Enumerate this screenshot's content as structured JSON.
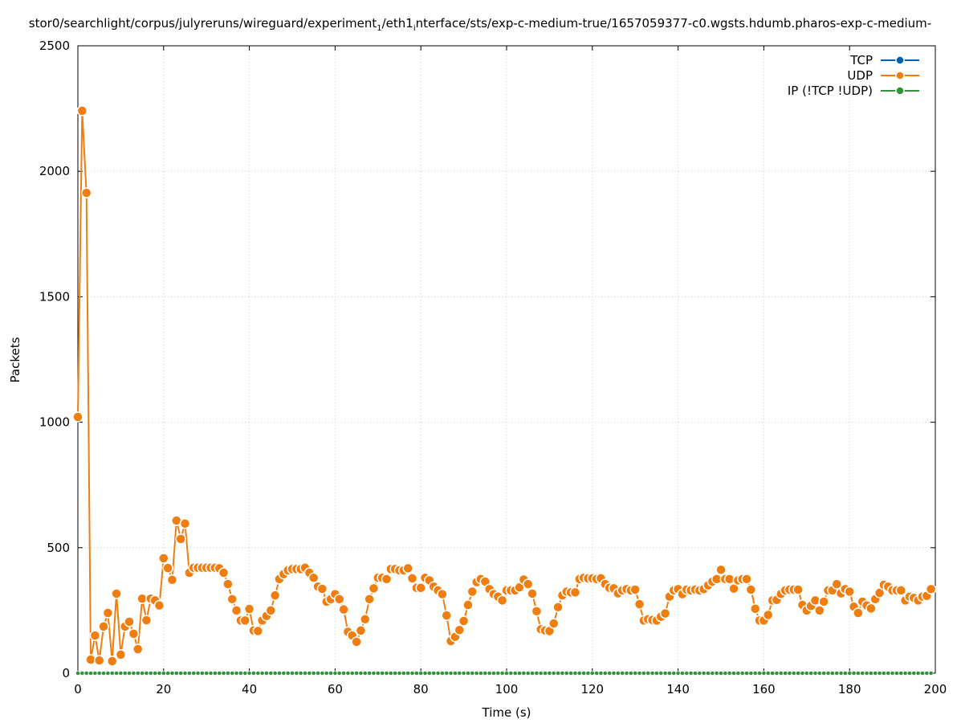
{
  "chart_data": {
    "type": "line",
    "title": [
      "stor0/searchlight/corpus/julyreruns/wireguard/experiment",
      "1",
      "/eth1",
      "i",
      "nterface/sts/exp-c-medium-true/1657059377-c0.wgsts.hdumb.pharos-exp-c-medium-"
    ],
    "x_label": "Time (s)",
    "y_label": "Packets",
    "x": [
      0,
      1,
      2,
      3,
      4,
      5,
      6,
      7,
      8,
      9,
      10,
      11,
      12,
      13,
      14,
      15,
      16,
      17,
      18,
      19,
      20,
      21,
      22,
      23,
      24,
      25,
      26,
      27,
      28,
      29,
      30,
      31,
      32,
      33,
      34,
      35,
      36,
      37,
      38,
      39,
      40,
      41,
      42,
      43,
      44,
      45,
      46,
      47,
      48,
      49,
      50,
      51,
      52,
      53,
      54,
      55,
      56,
      57,
      58,
      59,
      60,
      61,
      62,
      63,
      64,
      65,
      66,
      67,
      68,
      69,
      70,
      71,
      72,
      73,
      74,
      75,
      76,
      77,
      78,
      79,
      80,
      81,
      82,
      83,
      84,
      85,
      86,
      87,
      88,
      89,
      90,
      91,
      92,
      93,
      94,
      95,
      96,
      97,
      98,
      99,
      100,
      101,
      102,
      103,
      104,
      105,
      106,
      107,
      108,
      109,
      110,
      111,
      112,
      113,
      114,
      115,
      116,
      117,
      118,
      119,
      120,
      121,
      122,
      123,
      124,
      125,
      126,
      127,
      128,
      129,
      130,
      131,
      132,
      133,
      134,
      135,
      136,
      137,
      138,
      139,
      140,
      141,
      142,
      143,
      144,
      145,
      146,
      147,
      148,
      149,
      150,
      151,
      152,
      153,
      154,
      155,
      156,
      157,
      158,
      159,
      160,
      161,
      162,
      163,
      164,
      165,
      166,
      167,
      168,
      169,
      170,
      171,
      172,
      173,
      174,
      175,
      176,
      177,
      178,
      179,
      180,
      181,
      182,
      183,
      184,
      185,
      186,
      187,
      188,
      189,
      190,
      191,
      192,
      193,
      194,
      195,
      196,
      197,
      198,
      199
    ],
    "series": [
      {
        "name": "TCP",
        "color": "#0060ad",
        "values": [
          0,
          0,
          0,
          0,
          0,
          0,
          0,
          0,
          0,
          0,
          0,
          0,
          0,
          0,
          0,
          0,
          0,
          0,
          0,
          0,
          0,
          0,
          0,
          0,
          0,
          0,
          0,
          0,
          0,
          0,
          0,
          0,
          0,
          0,
          0,
          0,
          0,
          0,
          0,
          0,
          0,
          0,
          0,
          0,
          0,
          0,
          0,
          0,
          0,
          0,
          0,
          0,
          0,
          0,
          0,
          0,
          0,
          0,
          0,
          0,
          0,
          0,
          0,
          0,
          0,
          0,
          0,
          0,
          0,
          0,
          0,
          0,
          0,
          0,
          0,
          0,
          0,
          0,
          0,
          0,
          0,
          0,
          0,
          0,
          0,
          0,
          0,
          0,
          0,
          0,
          0,
          0,
          0,
          0,
          0,
          0,
          0,
          0,
          0,
          0,
          0,
          0,
          0,
          0,
          0,
          0,
          0,
          0,
          0,
          0,
          0,
          0,
          0,
          0,
          0,
          0,
          0,
          0,
          0,
          0,
          0,
          0,
          0,
          0,
          0,
          0,
          0,
          0,
          0,
          0,
          0,
          0,
          0,
          0,
          0,
          0,
          0,
          0,
          0,
          0,
          0,
          0,
          0,
          0,
          0,
          0,
          0,
          0,
          0,
          0,
          0,
          0,
          0,
          0,
          0,
          0,
          0,
          0,
          0,
          0,
          0,
          0,
          0,
          0,
          0,
          0,
          0,
          0,
          0,
          0,
          0,
          0,
          0,
          0,
          0,
          0,
          0,
          0,
          0,
          0,
          0,
          0,
          0,
          0,
          0,
          0,
          0,
          0,
          0,
          0,
          0,
          0,
          0,
          0,
          0,
          0,
          0,
          0,
          0,
          0
        ]
      },
      {
        "name": "UDP",
        "color": "#f07d0f",
        "values": [
          1021,
          2241,
          1914,
          54,
          150,
          51,
          186,
          240,
          48,
          317,
          74,
          186,
          205,
          157,
          96,
          297,
          211,
          297,
          290,
          270,
          458,
          419,
          372,
          608,
          535,
          596,
          400,
          420,
          420,
          420,
          420,
          420,
          420,
          418,
          400,
          355,
          295,
          250,
          210,
          210,
          256,
          170,
          168,
          210,
          228,
          250,
          310,
          375,
          395,
          410,
          415,
          415,
          415,
          420,
          400,
          380,
          345,
          336,
          285,
          295,
          315,
          295,
          254,
          165,
          150,
          125,
          170,
          215,
          295,
          338,
          380,
          380,
          375,
          415,
          415,
          410,
          410,
          418,
          378,
          340,
          340,
          380,
          370,
          345,
          330,
          315,
          230,
          128,
          145,
          172,
          208,
          272,
          325,
          363,
          375,
          365,
          335,
          315,
          305,
          290,
          330,
          330,
          330,
          342,
          373,
          355,
          317,
          247,
          175,
          170,
          168,
          198,
          263,
          310,
          325,
          322,
          322,
          375,
          380,
          378,
          378,
          375,
          378,
          355,
          340,
          338,
          318,
          330,
          335,
          330,
          333,
          275,
          210,
          215,
          212,
          210,
          225,
          238,
          305,
          330,
          335,
          315,
          333,
          330,
          333,
          330,
          335,
          350,
          365,
          375,
          412,
          375,
          375,
          337,
          370,
          375,
          375,
          333,
          257,
          210,
          210,
          232,
          290,
          292,
          316,
          330,
          333,
          333,
          333,
          272,
          250,
          268,
          290,
          250,
          285,
          330,
          330,
          355,
          318,
          335,
          325,
          265,
          240,
          285,
          270,
          258,
          295,
          320,
          352,
          345,
          330,
          330,
          330,
          290,
          305,
          300,
          290,
          305,
          308,
          335
        ]
      },
      {
        "name": "IP (!TCP  !UDP)",
        "color": "#2d9438",
        "values": [
          0,
          0,
          0,
          0,
          0,
          0,
          0,
          0,
          0,
          0,
          0,
          0,
          0,
          0,
          0,
          0,
          0,
          0,
          0,
          0,
          0,
          0,
          0,
          0,
          0,
          0,
          0,
          0,
          0,
          0,
          0,
          0,
          0,
          0,
          0,
          0,
          0,
          0,
          0,
          0,
          0,
          0,
          0,
          0,
          0,
          0,
          0,
          0,
          0,
          0,
          0,
          0,
          0,
          0,
          0,
          0,
          0,
          0,
          0,
          0,
          0,
          0,
          0,
          0,
          0,
          0,
          0,
          0,
          0,
          0,
          0,
          0,
          0,
          0,
          0,
          0,
          0,
          0,
          0,
          0,
          0,
          0,
          0,
          0,
          0,
          0,
          0,
          0,
          0,
          0,
          0,
          0,
          0,
          0,
          0,
          0,
          0,
          0,
          0,
          0,
          0,
          0,
          0,
          0,
          0,
          0,
          0,
          0,
          0,
          0,
          0,
          0,
          0,
          0,
          0,
          0,
          0,
          0,
          0,
          0,
          0,
          0,
          0,
          0,
          0,
          0,
          0,
          0,
          0,
          0,
          0,
          0,
          0,
          0,
          0,
          0,
          0,
          0,
          0,
          0,
          0,
          0,
          0,
          0,
          0,
          0,
          0,
          0,
          0,
          0,
          0,
          0,
          0,
          0,
          0,
          0,
          0,
          0,
          0,
          0,
          0,
          0,
          0,
          0,
          0,
          0,
          0,
          0,
          0,
          0,
          0,
          0,
          0,
          0,
          0,
          0,
          0,
          0,
          0,
          0,
          0,
          0,
          0,
          0,
          0,
          0,
          0,
          0,
          0,
          0,
          0,
          0,
          0,
          0,
          0,
          0,
          0,
          0,
          0,
          0
        ]
      }
    ],
    "xlim": [
      0,
      200
    ],
    "xticks": [
      0,
      20,
      40,
      60,
      80,
      100,
      120,
      140,
      160,
      180,
      200
    ],
    "ylim": [
      0,
      2500
    ],
    "yticks": [
      0,
      500,
      1000,
      1500,
      2000,
      2500
    ],
    "grid": true,
    "legend": "top-right"
  }
}
